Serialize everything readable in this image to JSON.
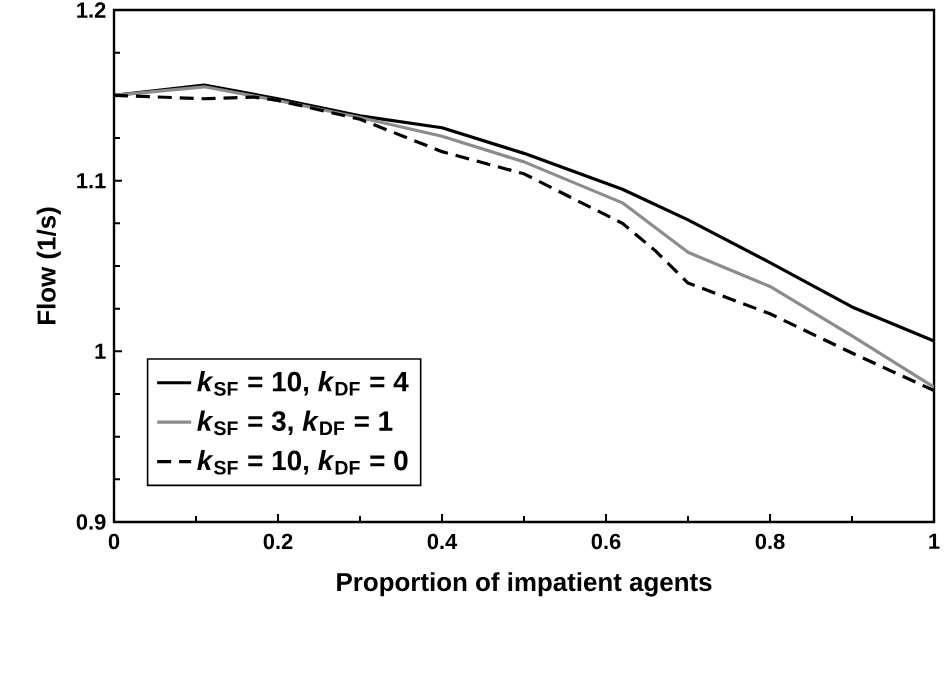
{
  "chart_data": {
    "type": "line",
    "xlabel": "Proportion of impatient agents",
    "ylabel": "Flow (1/s)",
    "xlim": [
      0,
      1
    ],
    "ylim": [
      0.9,
      1.2
    ],
    "xticks": [
      0,
      0.2,
      0.4,
      0.6,
      0.8,
      1
    ],
    "yticks": [
      0.9,
      1,
      1.1,
      1.2
    ],
    "grid": false,
    "legend": "bottom left",
    "marker": "none",
    "series": [
      {
        "name": "*k*$_{SF}$ = 10, *k*$_{DF}$ = 4",
        "color": "#000000",
        "line_style": "solid",
        "x": [
          0,
          0.11,
          0.2,
          0.3,
          0.4,
          0.5,
          0.62,
          0.7,
          0.8,
          0.9,
          1.0
        ],
        "values": [
          1.15,
          1.156,
          1.148,
          1.138,
          1.131,
          1.116,
          1.095,
          1.077,
          1.052,
          1.026,
          1.006
        ]
      },
      {
        "name": "*k*$_{SF}$ = 3, *k*$_{DF}$ = 1",
        "color": "#8c8c8c",
        "line_style": "solid",
        "x": [
          0,
          0.11,
          0.2,
          0.3,
          0.4,
          0.5,
          0.62,
          0.7,
          0.8,
          0.9,
          1.0
        ],
        "values": [
          1.15,
          1.155,
          1.147,
          1.137,
          1.126,
          1.111,
          1.087,
          1.058,
          1.038,
          1.009,
          0.979
        ]
      },
      {
        "name": "*k*$_{SF}$ = 10, *k*$_{DF}$ = 0",
        "color": "#000000",
        "line_style": "dashed",
        "x": [
          0,
          0.11,
          0.17,
          0.2,
          0.3,
          0.4,
          0.5,
          0.62,
          0.66,
          0.7,
          0.8,
          0.9,
          1.0
        ],
        "values": [
          1.15,
          1.148,
          1.149,
          1.147,
          1.136,
          1.117,
          1.104,
          1.075,
          1.059,
          1.04,
          1.022,
          0.999,
          0.977
        ]
      }
    ]
  }
}
